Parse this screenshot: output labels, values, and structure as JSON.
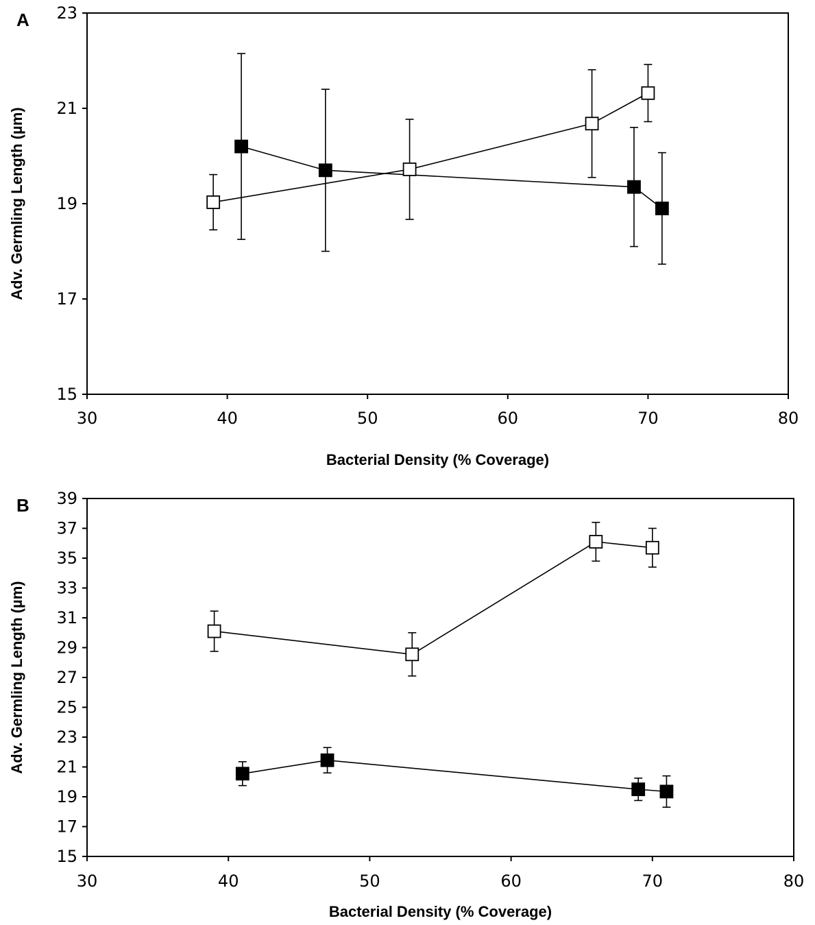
{
  "chart_data": [
    {
      "panel_label": "A",
      "type": "scatter",
      "xlabel": "Bacterial Density (% Coverage)",
      "ylabel": "Adv. Germling Length (µm)",
      "xlim": [
        30,
        80
      ],
      "ylim": [
        15,
        23
      ],
      "xticks": [
        30,
        40,
        50,
        60,
        70,
        80
      ],
      "yticks": [
        15,
        17,
        19,
        21,
        23
      ],
      "grid": false,
      "legend": "none",
      "series": [
        {
          "marker": "filled-square",
          "color": "#000000",
          "x": [
            41,
            47,
            69,
            71
          ],
          "y": [
            20.2,
            19.7,
            19.35,
            18.9
          ],
          "err": [
            1.95,
            1.7,
            1.25,
            1.17
          ]
        },
        {
          "marker": "open-square",
          "color": "#ffffff",
          "x": [
            39,
            53,
            66,
            70
          ],
          "y": [
            19.03,
            19.72,
            20.68,
            21.32
          ],
          "err": [
            0.58,
            1.05,
            1.13,
            0.6
          ]
        }
      ]
    },
    {
      "panel_label": "B",
      "type": "scatter",
      "xlabel": "Bacterial Density (% Coverage)",
      "ylabel": "Adv. Germling Length (µm)",
      "xlim": [
        30,
        80
      ],
      "ylim": [
        15,
        39
      ],
      "xticks": [
        30,
        40,
        50,
        60,
        70,
        80
      ],
      "yticks": [
        15,
        17,
        19,
        21,
        23,
        25,
        27,
        29,
        31,
        33,
        35,
        37,
        39
      ],
      "grid": false,
      "legend": "none",
      "series": [
        {
          "marker": "filled-square",
          "color": "#000000",
          "x": [
            41,
            47,
            69,
            71
          ],
          "y": [
            20.55,
            21.45,
            19.5,
            19.35
          ],
          "err": [
            0.8,
            0.85,
            0.75,
            1.05
          ]
        },
        {
          "marker": "open-square",
          "color": "#ffffff",
          "x": [
            39,
            53,
            66,
            70
          ],
          "y": [
            30.1,
            28.55,
            36.1,
            35.7
          ],
          "err": [
            1.35,
            1.45,
            1.3,
            1.3
          ]
        }
      ]
    }
  ]
}
